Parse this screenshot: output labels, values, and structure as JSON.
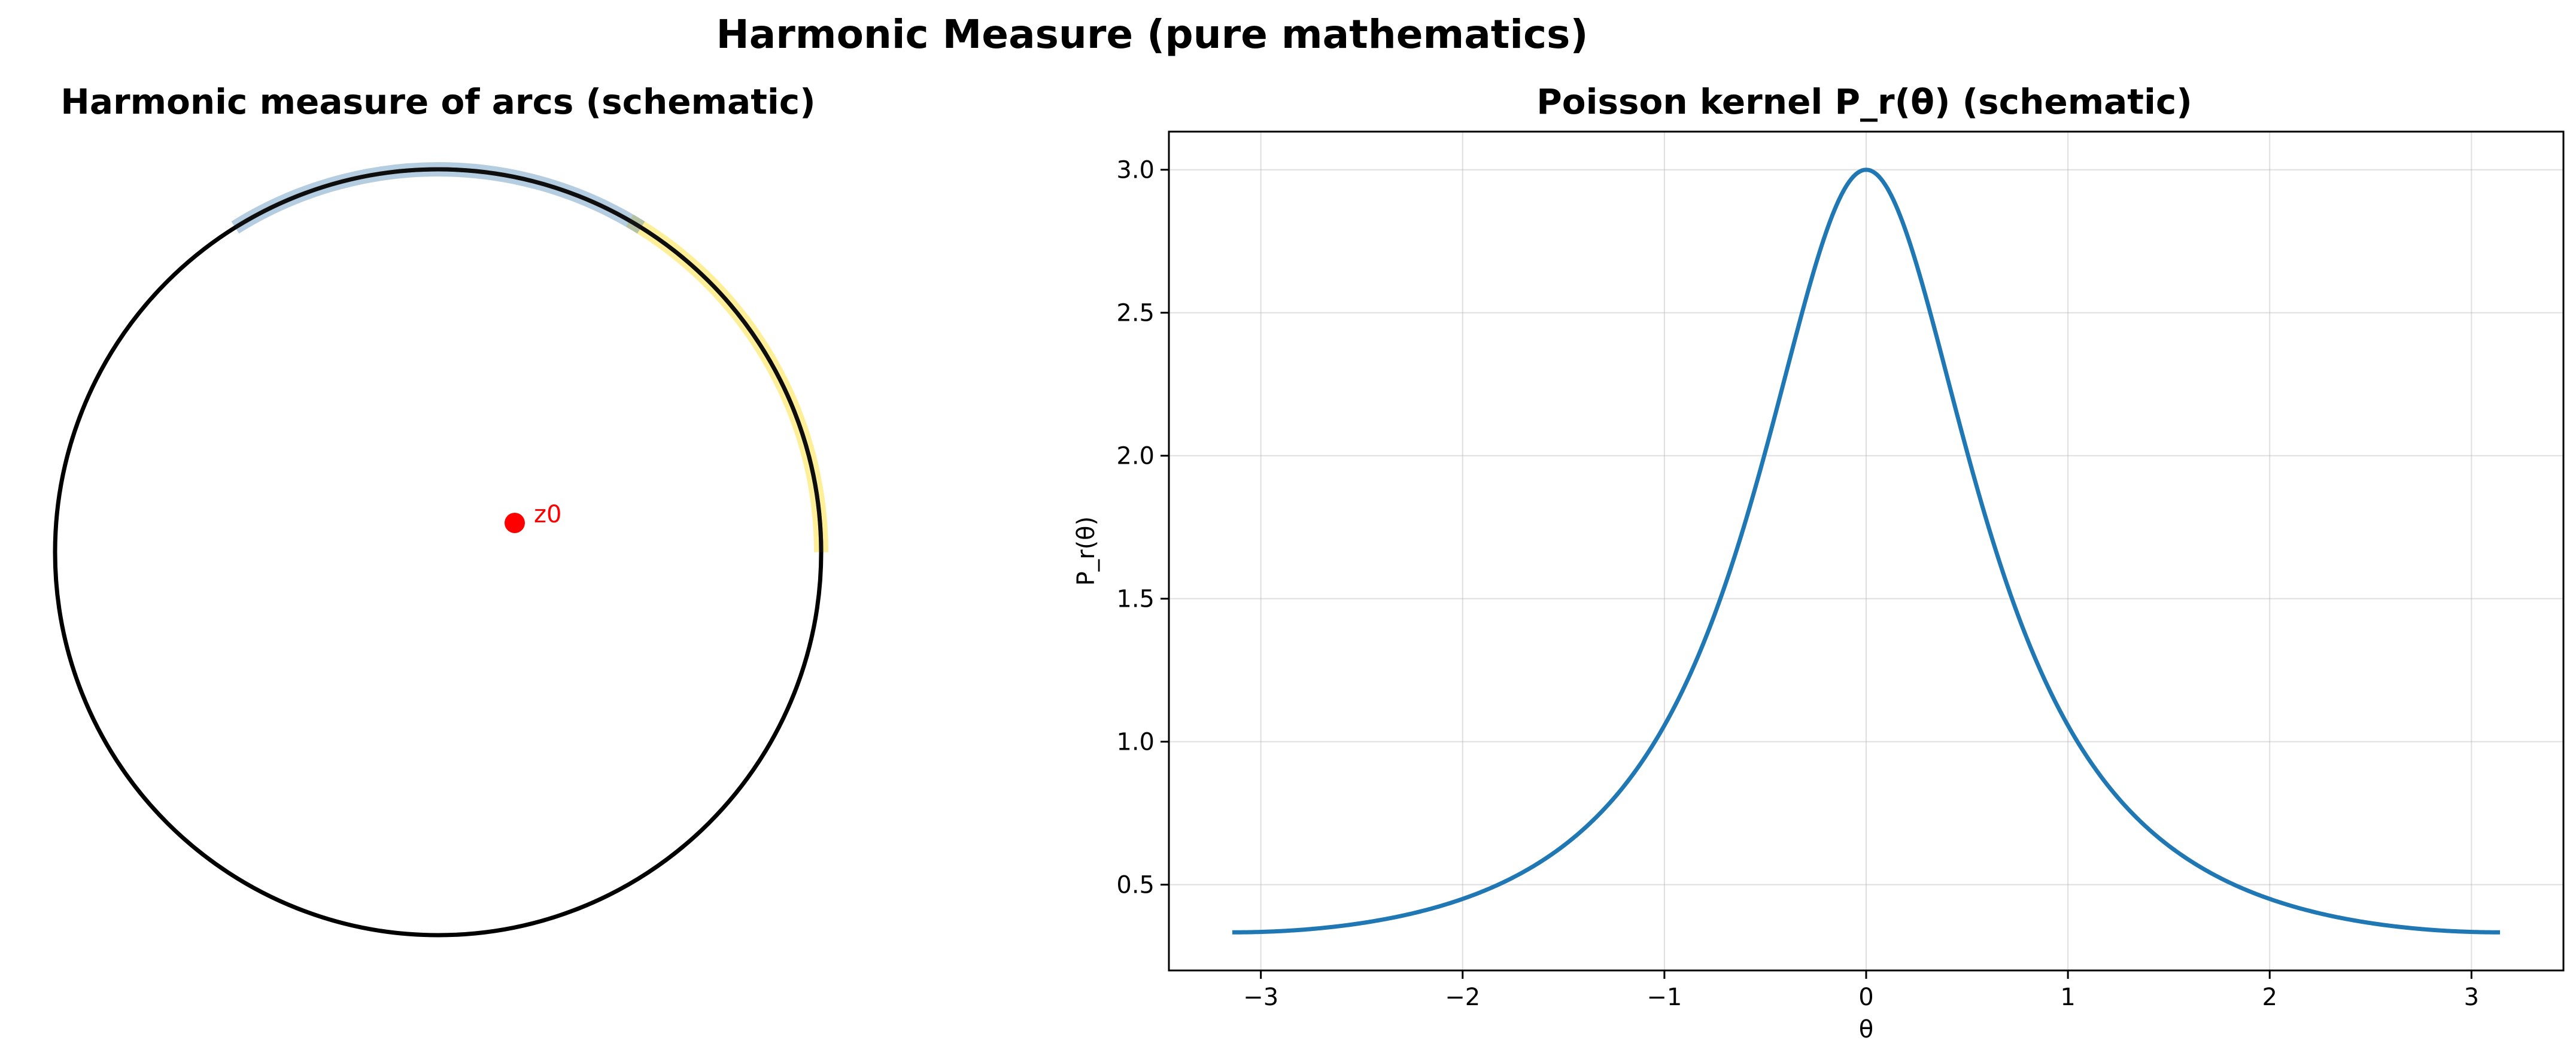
{
  "figure": {
    "suptitle": "Harmonic Measure (pure mathematics)"
  },
  "chart_data": [
    {
      "type": "diagram",
      "title": "Harmonic measure of arcs (schematic)",
      "circle": {
        "center": [
          0,
          0
        ],
        "radius": 1
      },
      "highlighted_arcs": [
        {
          "theta_start_deg": 0,
          "theta_end_deg": 60,
          "color": "#ffd700"
        },
        {
          "theta_start_deg": 58,
          "theta_end_deg": 122,
          "color": "#4682b4"
        }
      ],
      "point": {
        "label": "z0",
        "x": 0.2,
        "y": 0.1,
        "color": "#ff0000"
      },
      "axes_visible": false
    },
    {
      "type": "line",
      "title": "Poisson kernel P_r(θ) (schematic)",
      "xlabel": "θ",
      "ylabel": "P_r(θ)",
      "xlim": [
        -3.4558,
        3.4558
      ],
      "ylim": [
        0.2,
        3.1333
      ],
      "xticks": [
        -3,
        -2,
        -1,
        0,
        1,
        2,
        3
      ],
      "xtick_labels": [
        "−3",
        "−2",
        "−1",
        "0",
        "1",
        "2",
        "3"
      ],
      "yticks": [
        0.5,
        1.0,
        1.5,
        2.0,
        2.5,
        3.0
      ],
      "ytick_labels": [
        "0.5",
        "1.0",
        "1.5",
        "2.0",
        "2.5",
        "3.0"
      ],
      "grid": true,
      "series": [
        {
          "function": "poisson_kernel",
          "r": 0.5,
          "x_range": [
            -3.14159,
            3.14159
          ],
          "color": "#1f77b4"
        }
      ]
    }
  ]
}
